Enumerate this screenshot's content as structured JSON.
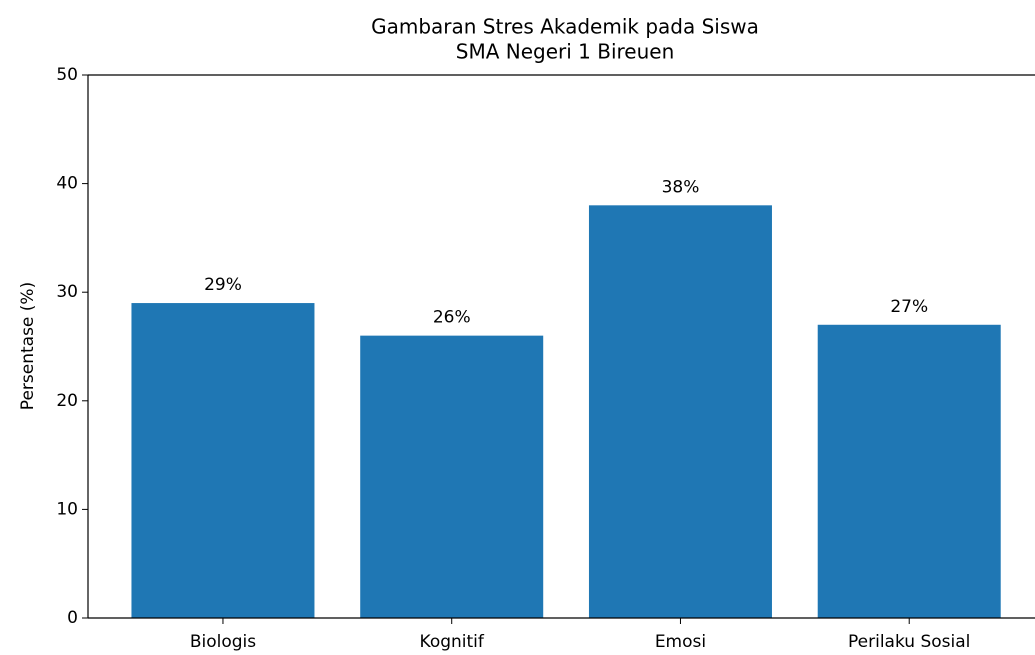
{
  "chart_data": {
    "type": "bar",
    "title": [
      "Gambaran Stres Akademik pada Siswa",
      "SMA Negeri 1 Bireuen"
    ],
    "ylabel": "Persentase (%)",
    "categories": [
      "Biologis",
      "Kognitif",
      "Emosi",
      "Perilaku Sosial"
    ],
    "values": [
      29,
      26,
      38,
      27
    ],
    "value_labels": [
      "29%",
      "26%",
      "38%",
      "27%"
    ],
    "color": "#1f77b4",
    "ylim": [
      0,
      50
    ],
    "yticks": [
      0,
      10,
      20,
      30,
      40,
      50
    ],
    "grid": false
  }
}
